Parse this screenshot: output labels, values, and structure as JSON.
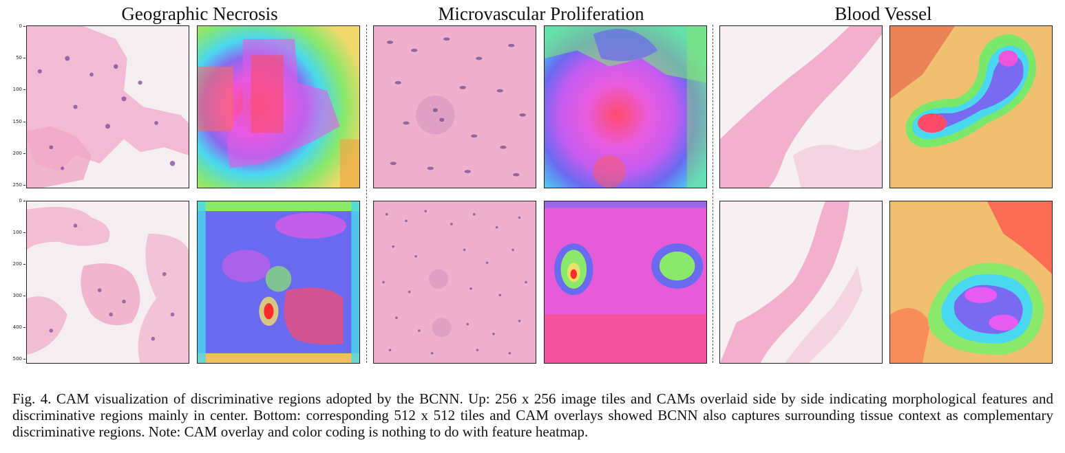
{
  "titles": {
    "necrosis": "Geographic Necrosis",
    "microvascular": "Microvascular Proliferation",
    "vessel": "Blood Vessel"
  },
  "top_ticks": [
    "0",
    "50",
    "100",
    "150",
    "200",
    "250"
  ],
  "bottom_ticks": [
    "0",
    "100",
    "200",
    "300",
    "400",
    "500"
  ],
  "caption": "Fig. 4.   CAM visualization of discriminative regions adopted by the BCNN. Up: 256 x 256 image tiles and CAMs overlaid side by side indicating morphological features and discriminative regions mainly in center. Bottom: corresponding 512 x 512 tiles and CAM overlays showed BCNN also captures surrounding tissue context as complementary discriminative regions. Note: CAM overlay and color coding is nothing to do with feature heatmap.",
  "colors": {
    "tissue_pink": "#f0a6c8",
    "nuclei_purple": "#7a4a9a",
    "cam_red": "#ff4a5a",
    "cam_magenta": "#e65cf0",
    "cam_blue": "#6a6af0",
    "cam_cyan": "#4ae0f0",
    "cam_green": "#8ae86a",
    "cam_yellow": "#f0e06a"
  }
}
